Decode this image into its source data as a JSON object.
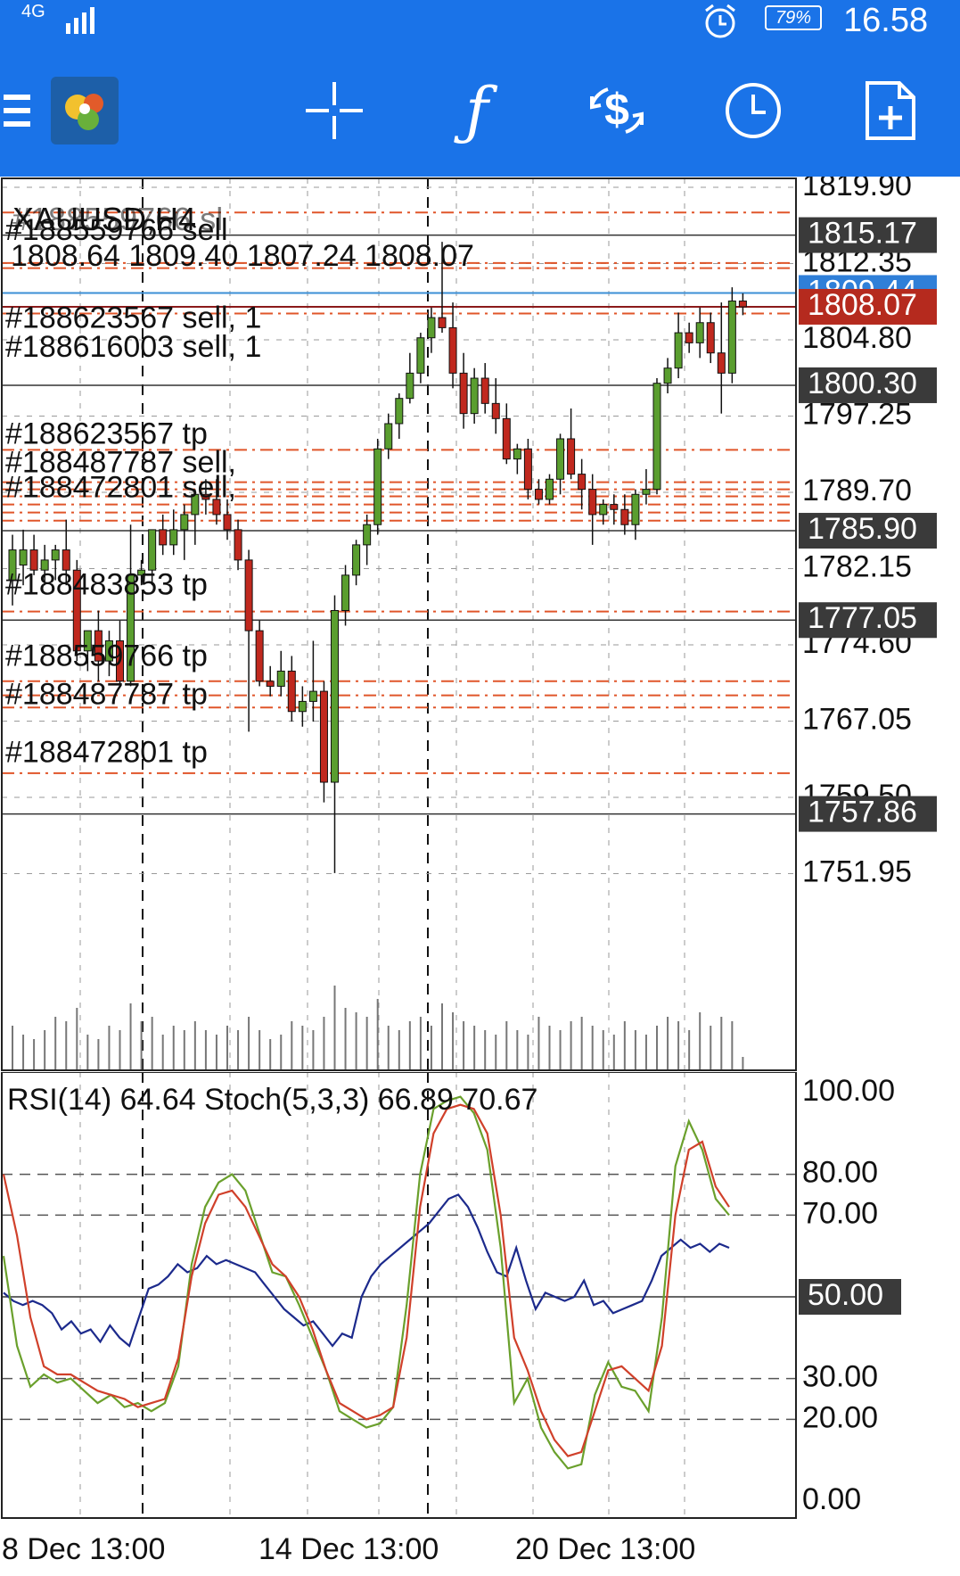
{
  "status_bar": {
    "network": "4G",
    "battery": "79%",
    "time": "16.58",
    "icons": [
      "signal-icon",
      "alarm-icon",
      "battery-icon"
    ]
  },
  "toolbar": {
    "buttons": [
      {
        "name": "menu-icon",
        "label": "Menu"
      },
      {
        "name": "metatrader-logo-icon",
        "label": "MetaTrader"
      },
      {
        "name": "crosshair-icon",
        "label": "Crosshair"
      },
      {
        "name": "indicators-icon",
        "label": "f"
      },
      {
        "name": "trade-icon",
        "label": "Trade"
      },
      {
        "name": "timeframe-icon",
        "label": "Timeframe"
      },
      {
        "name": "new-order-icon",
        "label": "New order"
      }
    ]
  },
  "colors": {
    "toolbar": "#1a73e8",
    "bull": "#5a9e2f",
    "bear": "#c0281e",
    "rsi": "#1c2a8c",
    "stoch_main": "#6aa02c",
    "stoch_signal": "#d0402a",
    "order_line": "#e0562a",
    "bid_line": "#8b1a1a",
    "ask_line": "#3b8fd6"
  },
  "chart_data": [
    {
      "type": "candlestick",
      "symbol_label": "XAUUSD,H4",
      "overlapping_label": "#188559766 sl",
      "ohlc_label": "1808.64 1809.40 1807.24 1808.07",
      "y_ticks": [
        "1819.90",
        "1812.35",
        "1804.80",
        "1797.25",
        "1789.70",
        "1782.15",
        "1774.60",
        "1767.05",
        "1759.50",
        "1751.95"
      ],
      "ylim": [
        1749.0,
        1823.5
      ],
      "price_badges": [
        {
          "label": "1815.17",
          "value": 1815.17,
          "style": "dark"
        },
        {
          "label": "1809.44",
          "value": 1809.44,
          "style": "ask"
        },
        {
          "label": "1808.07",
          "value": 1808.07,
          "style": "bid"
        },
        {
          "label": "1800.30",
          "value": 1800.3,
          "style": "dark"
        },
        {
          "label": "1785.90",
          "value": 1785.9,
          "style": "dark"
        },
        {
          "label": "1777.05",
          "value": 1777.05,
          "style": "dark"
        },
        {
          "label": "1757.86",
          "value": 1757.86,
          "style": "dark"
        }
      ],
      "order_labels": [
        {
          "text": "#188559766 sell",
          "value": 1815.5
        },
        {
          "text": "#188623567 sell, 1",
          "value": 1806.8
        },
        {
          "text": "#188616003 sell, 1",
          "value": 1803.9
        },
        {
          "text": "#188623567 tp",
          "value": 1795.3
        },
        {
          "text": "#188487787 sell,",
          "value": 1792.5
        },
        {
          "text": "#188472801 sell,",
          "value": 1790.0
        },
        {
          "text": "#188483853 tp",
          "value": 1780.4
        },
        {
          "text": "#188559766 tp",
          "value": 1773.3
        },
        {
          "text": "#188487787 tp",
          "value": 1769.5
        },
        {
          "text": "#188472801 tp",
          "value": 1763.8
        }
      ],
      "dashed_levels": [
        1817.4,
        1812.4,
        1811.9,
        1807.4,
        1793.9,
        1790.7,
        1790.0,
        1789.3,
        1788.5,
        1787.7,
        1786.9,
        1777.9,
        1771.0,
        1769.6,
        1768.4,
        1761.9
      ],
      "solid_levels": [
        1815.17,
        1800.3,
        1785.9,
        1777.05,
        1757.86
      ],
      "candles": [
        {
          "o": 1781.0,
          "h": 1785.5,
          "l": 1778.5,
          "c": 1784.0
        },
        {
          "o": 1782.5,
          "h": 1786.0,
          "l": 1780.5,
          "c": 1784.0
        },
        {
          "o": 1784.0,
          "h": 1785.5,
          "l": 1781.5,
          "c": 1782.0
        },
        {
          "o": 1782.0,
          "h": 1784.5,
          "l": 1780.5,
          "c": 1783.0
        },
        {
          "o": 1783.0,
          "h": 1784.5,
          "l": 1781.0,
          "c": 1784.0
        },
        {
          "o": 1784.0,
          "h": 1787.0,
          "l": 1780.5,
          "c": 1782.0
        },
        {
          "o": 1782.0,
          "h": 1783.0,
          "l": 1773.0,
          "c": 1774.0
        },
        {
          "o": 1774.0,
          "h": 1776.0,
          "l": 1772.0,
          "c": 1776.0
        },
        {
          "o": 1776.0,
          "h": 1778.0,
          "l": 1771.0,
          "c": 1773.0
        },
        {
          "o": 1773.0,
          "h": 1776.0,
          "l": 1771.5,
          "c": 1775.0
        },
        {
          "o": 1775.0,
          "h": 1777.0,
          "l": 1770.5,
          "c": 1771.0
        },
        {
          "o": 1771.0,
          "h": 1786.5,
          "l": 1770.5,
          "c": 1781.5
        },
        {
          "o": 1781.5,
          "h": 1783.0,
          "l": 1780.5,
          "c": 1782.0
        },
        {
          "o": 1782.0,
          "h": 1786.0,
          "l": 1780.5,
          "c": 1786.0
        },
        {
          "o": 1786.0,
          "h": 1787.5,
          "l": 1783.5,
          "c": 1784.5
        },
        {
          "o": 1784.5,
          "h": 1788.0,
          "l": 1783.5,
          "c": 1786.0
        },
        {
          "o": 1786.0,
          "h": 1788.5,
          "l": 1783.0,
          "c": 1787.5
        },
        {
          "o": 1787.5,
          "h": 1790.0,
          "l": 1784.5,
          "c": 1789.5
        },
        {
          "o": 1789.5,
          "h": 1791.0,
          "l": 1787.5,
          "c": 1789.0
        },
        {
          "o": 1789.0,
          "h": 1791.0,
          "l": 1786.5,
          "c": 1787.5
        },
        {
          "o": 1787.5,
          "h": 1789.0,
          "l": 1785.0,
          "c": 1786.0
        },
        {
          "o": 1786.0,
          "h": 1787.0,
          "l": 1782.0,
          "c": 1783.0
        },
        {
          "o": 1783.0,
          "h": 1784.0,
          "l": 1766.0,
          "c": 1776.0
        },
        {
          "o": 1776.0,
          "h": 1777.0,
          "l": 1770.5,
          "c": 1771.0
        },
        {
          "o": 1771.0,
          "h": 1772.5,
          "l": 1769.5,
          "c": 1770.5
        },
        {
          "o": 1770.5,
          "h": 1774.0,
          "l": 1769.5,
          "c": 1772.0
        },
        {
          "o": 1772.0,
          "h": 1773.5,
          "l": 1767.0,
          "c": 1768.0
        },
        {
          "o": 1768.0,
          "h": 1770.5,
          "l": 1766.5,
          "c": 1769.0
        },
        {
          "o": 1769.0,
          "h": 1775.0,
          "l": 1767.0,
          "c": 1770.0
        },
        {
          "o": 1770.0,
          "h": 1771.0,
          "l": 1759.0,
          "c": 1761.0
        },
        {
          "o": 1761.0,
          "h": 1779.5,
          "l": 1752.0,
          "c": 1778.0
        },
        {
          "o": 1778.0,
          "h": 1782.5,
          "l": 1776.5,
          "c": 1781.5
        },
        {
          "o": 1781.5,
          "h": 1785.0,
          "l": 1780.5,
          "c": 1784.5
        },
        {
          "o": 1784.5,
          "h": 1787.5,
          "l": 1782.5,
          "c": 1786.5
        },
        {
          "o": 1786.5,
          "h": 1795.0,
          "l": 1785.5,
          "c": 1794.0
        },
        {
          "o": 1794.0,
          "h": 1797.5,
          "l": 1793.0,
          "c": 1796.5
        },
        {
          "o": 1796.5,
          "h": 1799.5,
          "l": 1795.0,
          "c": 1799.0
        },
        {
          "o": 1799.0,
          "h": 1803.5,
          "l": 1798.5,
          "c": 1801.5
        },
        {
          "o": 1801.5,
          "h": 1805.5,
          "l": 1800.5,
          "c": 1805.0
        },
        {
          "o": 1805.0,
          "h": 1808.0,
          "l": 1803.5,
          "c": 1807.0
        },
        {
          "o": 1807.0,
          "h": 1814.5,
          "l": 1805.5,
          "c": 1806.0
        },
        {
          "o": 1806.0,
          "h": 1808.5,
          "l": 1800.0,
          "c": 1801.5
        },
        {
          "o": 1801.5,
          "h": 1803.5,
          "l": 1796.0,
          "c": 1797.5
        },
        {
          "o": 1797.5,
          "h": 1802.0,
          "l": 1796.5,
          "c": 1801.0
        },
        {
          "o": 1801.0,
          "h": 1802.5,
          "l": 1797.5,
          "c": 1798.5
        },
        {
          "o": 1798.5,
          "h": 1801.0,
          "l": 1795.5,
          "c": 1797.0
        },
        {
          "o": 1797.0,
          "h": 1798.5,
          "l": 1792.5,
          "c": 1793.0
        },
        {
          "o": 1793.0,
          "h": 1794.5,
          "l": 1791.5,
          "c": 1794.0
        },
        {
          "o": 1794.0,
          "h": 1795.0,
          "l": 1789.0,
          "c": 1790.0
        },
        {
          "o": 1790.0,
          "h": 1791.0,
          "l": 1788.5,
          "c": 1789.0
        },
        {
          "o": 1789.0,
          "h": 1791.5,
          "l": 1788.5,
          "c": 1791.0
        },
        {
          "o": 1791.0,
          "h": 1795.5,
          "l": 1789.5,
          "c": 1795.0
        },
        {
          "o": 1795.0,
          "h": 1798.0,
          "l": 1791.0,
          "c": 1791.5
        },
        {
          "o": 1791.5,
          "h": 1793.0,
          "l": 1788.0,
          "c": 1790.0
        },
        {
          "o": 1790.0,
          "h": 1791.5,
          "l": 1784.5,
          "c": 1787.5
        },
        {
          "o": 1787.5,
          "h": 1789.0,
          "l": 1786.5,
          "c": 1788.5
        },
        {
          "o": 1788.5,
          "h": 1789.5,
          "l": 1786.5,
          "c": 1788.0
        },
        {
          "o": 1788.0,
          "h": 1789.5,
          "l": 1785.5,
          "c": 1786.5
        },
        {
          "o": 1786.5,
          "h": 1790.0,
          "l": 1785.0,
          "c": 1789.5
        },
        {
          "o": 1789.5,
          "h": 1792.0,
          "l": 1788.5,
          "c": 1790.0
        },
        {
          "o": 1790.0,
          "h": 1801.0,
          "l": 1789.5,
          "c": 1800.5
        },
        {
          "o": 1800.5,
          "h": 1803.0,
          "l": 1799.5,
          "c": 1802.0
        },
        {
          "o": 1802.0,
          "h": 1807.5,
          "l": 1801.0,
          "c": 1805.5
        },
        {
          "o": 1805.5,
          "h": 1806.5,
          "l": 1803.5,
          "c": 1804.5
        },
        {
          "o": 1804.5,
          "h": 1808.0,
          "l": 1803.0,
          "c": 1806.5
        },
        {
          "o": 1806.5,
          "h": 1807.5,
          "l": 1802.5,
          "c": 1803.5
        },
        {
          "o": 1803.5,
          "h": 1808.5,
          "l": 1797.5,
          "c": 1801.5
        },
        {
          "o": 1801.5,
          "h": 1810.0,
          "l": 1800.5,
          "c": 1808.64
        },
        {
          "o": 1808.64,
          "h": 1809.4,
          "l": 1807.24,
          "c": 1808.07
        }
      ],
      "volumes": [
        50,
        40,
        35,
        45,
        60,
        55,
        70,
        40,
        35,
        50,
        45,
        75,
        55,
        60,
        40,
        50,
        45,
        55,
        45,
        40,
        50,
        45,
        60,
        45,
        35,
        40,
        55,
        50,
        45,
        60,
        95,
        70,
        65,
        60,
        80,
        50,
        45,
        55,
        60,
        50,
        75,
        65,
        55,
        50,
        45,
        40,
        55,
        45,
        40,
        60,
        50,
        45,
        55,
        60,
        50,
        45,
        40,
        55,
        45,
        40,
        50,
        60,
        55,
        45,
        65,
        50,
        60,
        55,
        15
      ]
    },
    {
      "type": "line",
      "indicator_label": "RSI(14) 64.64 Stoch(5,3,3) 66.89 70.67",
      "y_ticks": [
        "100.00",
        "80.00",
        "70.00",
        "50.00",
        "30.00",
        "20.00",
        "0.00"
      ],
      "badge": "50.00",
      "ylim": [
        0,
        100
      ],
      "dashed_levels": [
        80,
        70,
        30,
        20
      ],
      "solid_levels": [
        50
      ],
      "series": [
        {
          "values": [
            51,
            49,
            48,
            49,
            48,
            46,
            42,
            44,
            41,
            42,
            39,
            43,
            40,
            38,
            45,
            52,
            53,
            55,
            58,
            56,
            57,
            60,
            58,
            59,
            58,
            57,
            56,
            53,
            50,
            47,
            45,
            43,
            44,
            41,
            38,
            41,
            40,
            50,
            55,
            58,
            60,
            62,
            64,
            66,
            68,
            71,
            74,
            75,
            72,
            67,
            61,
            56,
            55,
            62,
            54,
            47,
            51,
            50,
            49,
            50,
            54,
            48,
            49,
            46,
            47,
            48,
            49,
            54,
            60,
            62,
            64,
            62,
            63,
            61,
            63,
            62
          ]
        },
        {
          "values": [
            60,
            38,
            28,
            31,
            29,
            30,
            27,
            24,
            26,
            23,
            24,
            22,
            24,
            33,
            58,
            72,
            78,
            80,
            76,
            66,
            56,
            55,
            48,
            40,
            32,
            22,
            20,
            18,
            19,
            23,
            48,
            80,
            96,
            98,
            99,
            95,
            86,
            62,
            24,
            30,
            18,
            12,
            8,
            9,
            26,
            34,
            28,
            27,
            22,
            45,
            82,
            93,
            86,
            74,
            70
          ]
        },
        {
          "values": [
            80,
            65,
            45,
            33,
            31,
            31,
            29,
            27,
            26,
            25,
            23,
            24,
            25,
            35,
            55,
            68,
            75,
            76,
            72,
            65,
            58,
            55,
            50,
            42,
            32,
            24,
            22,
            20,
            21,
            23,
            40,
            72,
            90,
            96,
            97,
            96,
            90,
            70,
            40,
            32,
            22,
            15,
            11,
            12,
            22,
            32,
            33,
            30,
            27,
            38,
            70,
            86,
            88,
            77,
            72
          ]
        }
      ]
    }
  ],
  "time_axis": {
    "labels": [
      "8 Dec 13:00",
      "14 Dec 13:00",
      "20 Dec 13:00"
    ]
  }
}
